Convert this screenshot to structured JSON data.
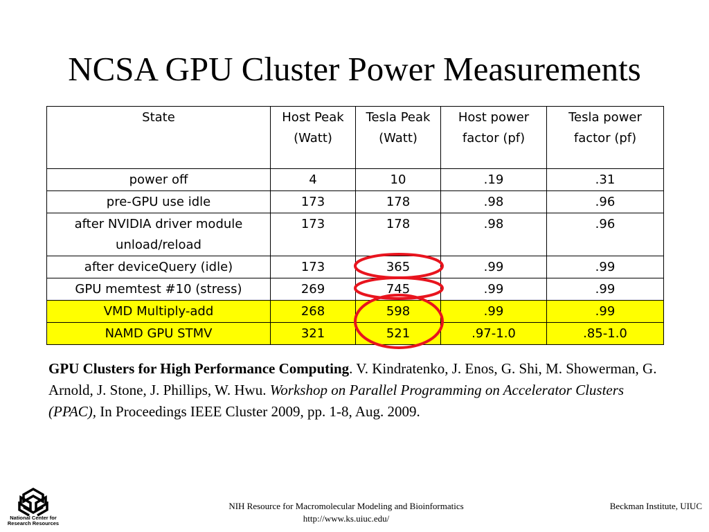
{
  "slide": {
    "title": "NCSA GPU Cluster Power Measurements"
  },
  "table": {
    "headers": [
      "State",
      "Host Peak (Watt)",
      "Tesla Peak (Watt)",
      "Host power factor (pf)",
      "Tesla power factor (pf)"
    ],
    "rows": [
      {
        "state": "power off",
        "host_peak": "4",
        "tesla_peak": "10",
        "host_pf": ".19",
        "tesla_pf": ".31",
        "highlight": false
      },
      {
        "state": "pre-GPU use idle",
        "host_peak": "173",
        "tesla_peak": "178",
        "host_pf": ".98",
        "tesla_pf": ".96",
        "highlight": false
      },
      {
        "state": "after NVIDIA driver module unload/reload",
        "host_peak": "173",
        "tesla_peak": "178",
        "host_pf": ".98",
        "tesla_pf": ".96",
        "highlight": false
      },
      {
        "state": "after deviceQuery (idle)",
        "host_peak": "173",
        "tesla_peak": "365",
        "host_pf": ".99",
        "tesla_pf": ".99",
        "highlight": false
      },
      {
        "state": "GPU memtest #10 (stress)",
        "host_peak": "269",
        "tesla_peak": "745",
        "host_pf": ".99",
        "tesla_pf": ".99",
        "highlight": false
      },
      {
        "state": "VMD Multiply-add",
        "host_peak": "268",
        "tesla_peak": "598",
        "host_pf": ".99",
        "tesla_pf": ".99",
        "highlight": true
      },
      {
        "state": "NAMD GPU STMV",
        "host_peak": "321",
        "tesla_peak": "521",
        "host_pf": ".97-1.0",
        "tesla_pf": ".85-1.0",
        "highlight": true
      }
    ],
    "highlight_color": "#ffff00",
    "circle_color": "#e8141e"
  },
  "citation": {
    "bold_title": "GPU Clusters for High Performance Computing",
    "authors": ".  V. Kindratenko, J. Enos, G. Shi, M. Showerman, G. Arnold, J. Stone, J. Phillips, W. Hwu.  ",
    "venue_italic": "Workshop on Parallel Programming on Accelerator Clusters (PPAC),",
    "rest": " In Proceedings IEEE Cluster 2009, pp. 1-8, Aug. 2009."
  },
  "footer": {
    "logo_text": "National Center for Research Resources",
    "center_line1": "NIH Resource for Macromolecular Modeling and Bioinformatics",
    "center_line2": "http://www.ks.uiuc.edu/",
    "right": "Beckman Institute, UIUC"
  }
}
